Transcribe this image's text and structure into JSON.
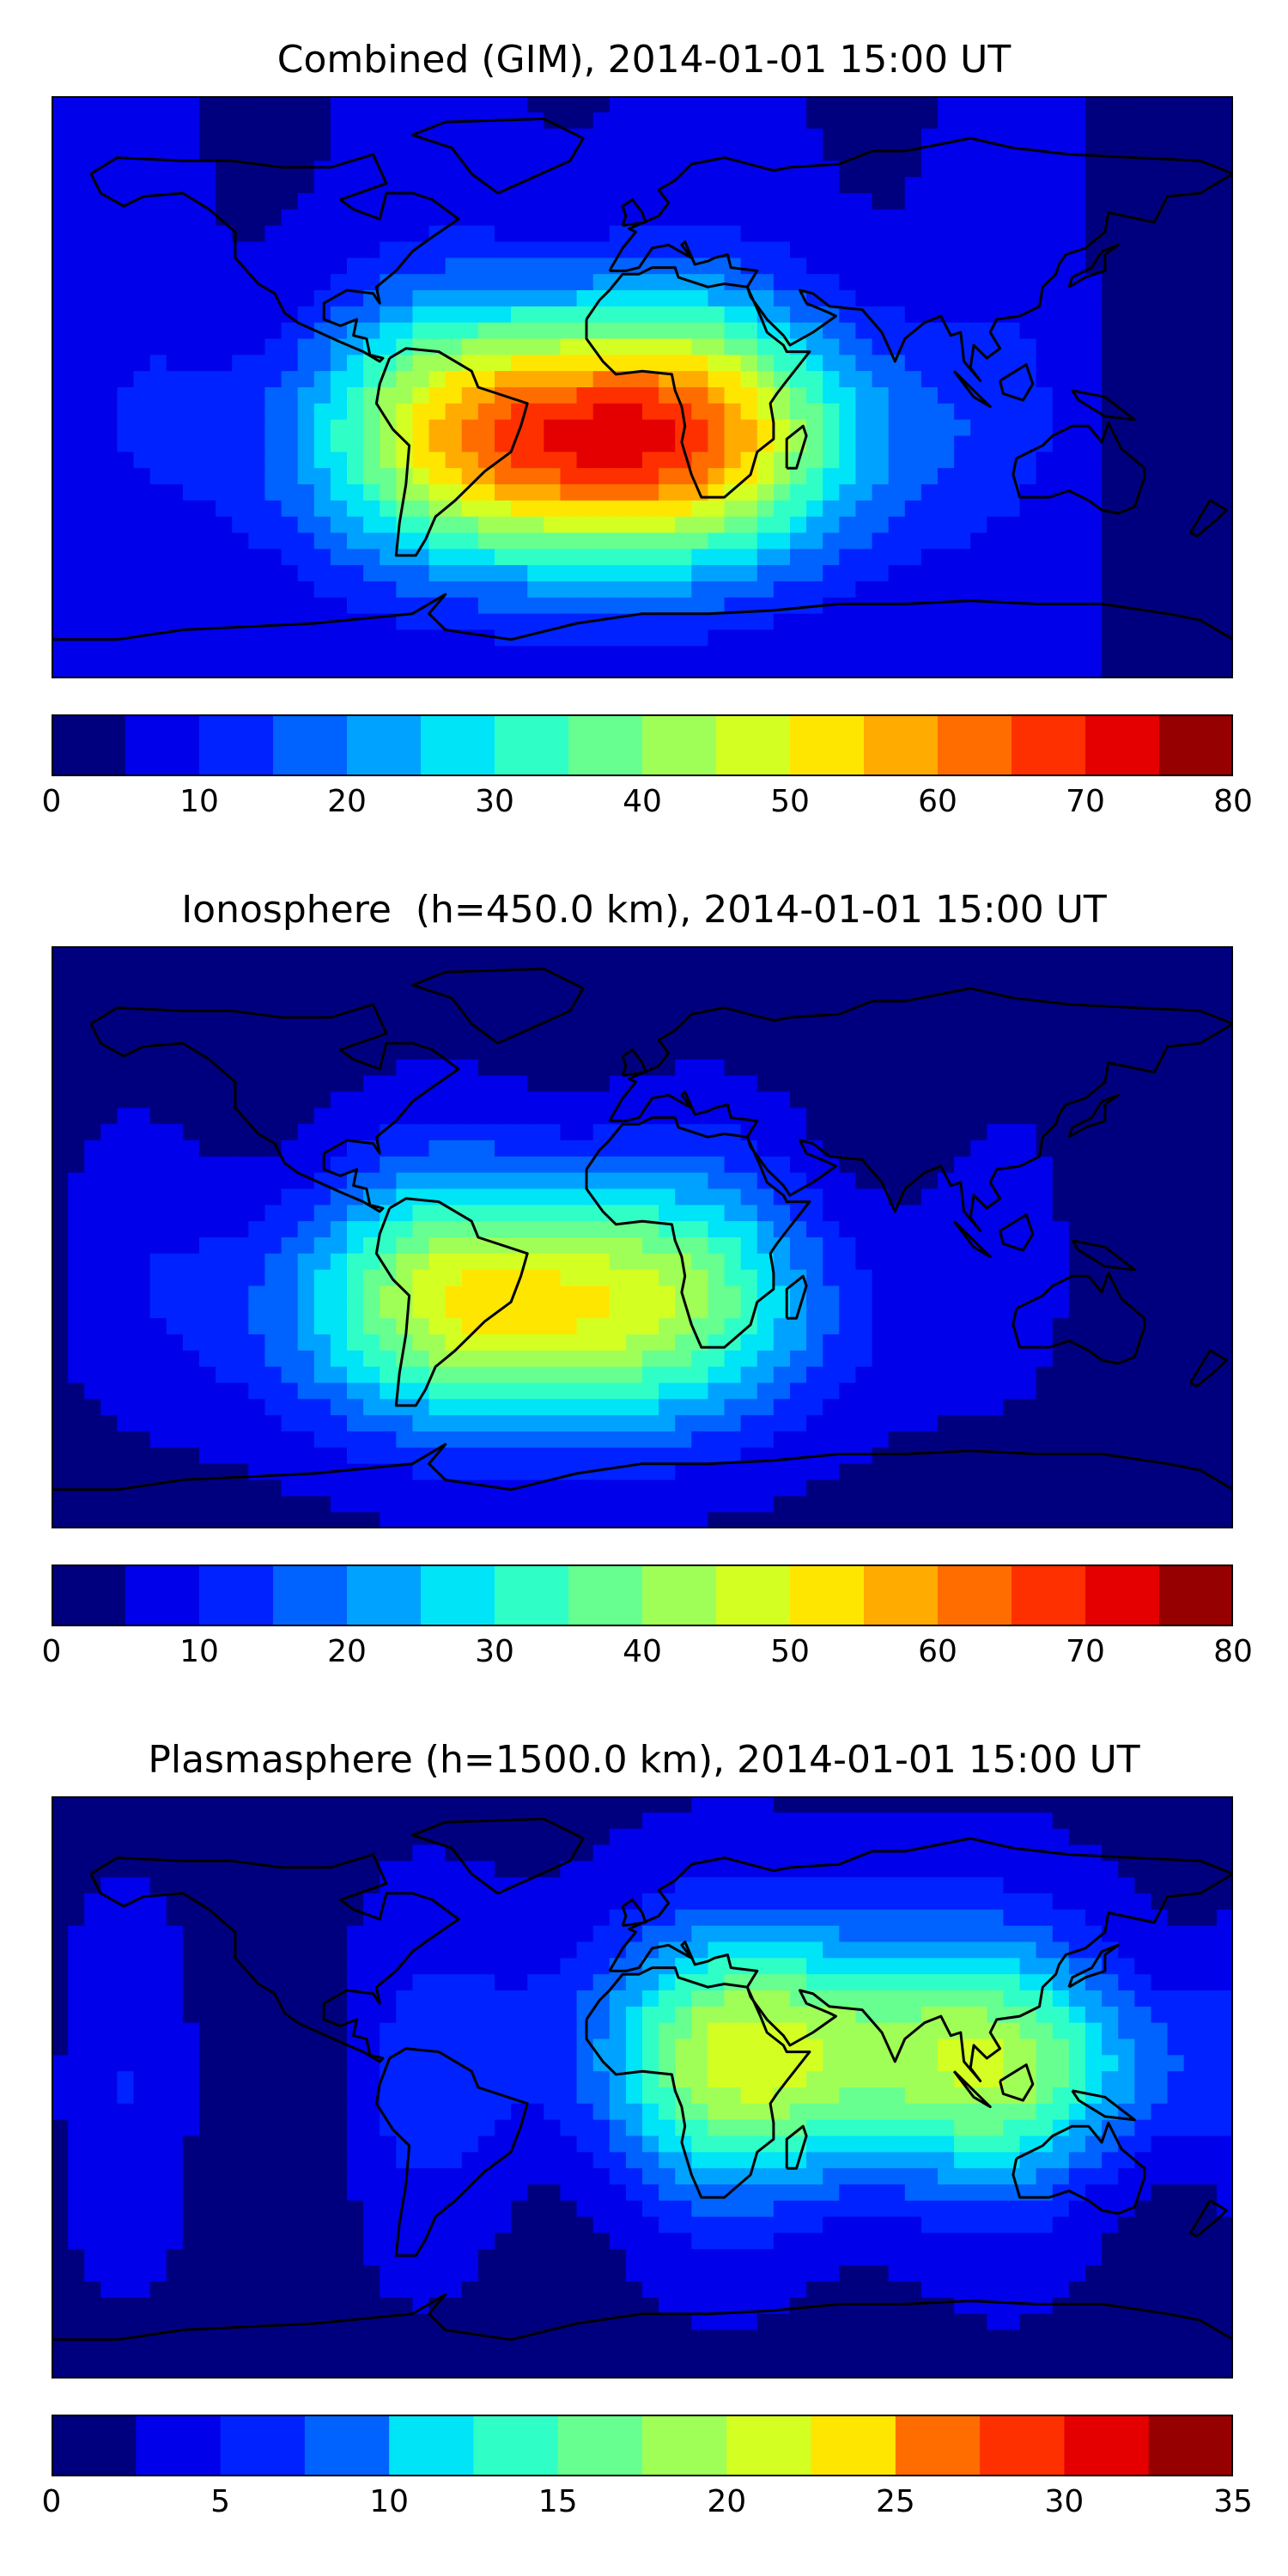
{
  "panels": [
    {
      "title": "Combined (GIM), 2014-01-01 15:00 UT",
      "colorbar": {
        "min": 0,
        "max": 80,
        "step": 5,
        "ticks": [
          "0",
          "10",
          "20",
          "30",
          "40",
          "50",
          "60",
          "70",
          "80"
        ]
      },
      "field_peak": {
        "lon": -15,
        "lat": -15,
        "value": 75
      },
      "field_background": 5
    },
    {
      "title": "Ionosphere  (h=450.0 km), 2014-01-01 15:00 UT",
      "colorbar": {
        "min": 0,
        "max": 80,
        "step": 5,
        "ticks": [
          "0",
          "10",
          "20",
          "30",
          "40",
          "50",
          "60",
          "70",
          "80"
        ]
      },
      "field_peak": {
        "lon": -30,
        "lat": -20,
        "value": 55
      },
      "field_background": 3
    },
    {
      "title": "Plasmasphere (h=1500.0 km), 2014-01-01 15:00 UT",
      "colorbar": {
        "min": 0,
        "max": 35,
        "step": 2.5,
        "ticks": [
          "0",
          "5",
          "10",
          "15",
          "20",
          "25",
          "30",
          "35"
        ]
      },
      "field_peak": {
        "lon": 55,
        "lat": 10,
        "value": 24
      },
      "field_background": 2
    }
  ],
  "colormap": [
    "#00007f",
    "#0000ea",
    "#0022ff",
    "#0062ff",
    "#00a2ff",
    "#00e4f8",
    "#2fffc7",
    "#66ff90",
    "#a0ff56",
    "#d4ff23",
    "#ffe600",
    "#ffab00",
    "#ff6d00",
    "#ff3000",
    "#e40000",
    "#960000"
  ],
  "map_extent": {
    "lon": [
      -180,
      180
    ],
    "lat": [
      -90,
      90
    ]
  }
}
